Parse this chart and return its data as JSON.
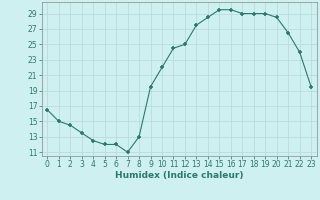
{
  "x": [
    0,
    1,
    2,
    3,
    4,
    5,
    6,
    7,
    8,
    9,
    10,
    11,
    12,
    13,
    14,
    15,
    16,
    17,
    18,
    19,
    20,
    21,
    22,
    23
  ],
  "y": [
    16.5,
    15.0,
    14.5,
    13.5,
    12.5,
    12.0,
    12.0,
    11.0,
    13.0,
    19.5,
    22.0,
    24.5,
    25.0,
    27.5,
    28.5,
    29.5,
    29.5,
    29.0,
    29.0,
    29.0,
    28.5,
    26.5,
    24.0,
    19.5
  ],
  "line_color": "#2a7a6a",
  "marker_color": "#2a7a6a",
  "bg_color": "#cff0f0",
  "grid_color": "#b8d8d8",
  "xlabel": "Humidex (Indice chaleur)",
  "xlim": [
    -0.5,
    23.5
  ],
  "ylim": [
    10.5,
    30.5
  ],
  "yticks": [
    11,
    13,
    15,
    17,
    19,
    21,
    23,
    25,
    27,
    29
  ],
  "xticks": [
    0,
    1,
    2,
    3,
    4,
    5,
    6,
    7,
    8,
    9,
    10,
    11,
    12,
    13,
    14,
    15,
    16,
    17,
    18,
    19,
    20,
    21,
    22,
    23
  ],
  "tick_fontsize": 5.5,
  "label_fontsize": 6.5
}
